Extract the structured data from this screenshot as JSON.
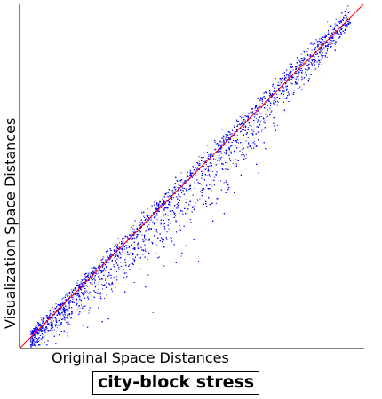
{
  "chart_data": {
    "type": "scatter",
    "title": "city-block stress",
    "xlabel": "Original Space Distances",
    "ylabel": "Visualization Space Distances",
    "xlim": [
      0,
      1
    ],
    "ylim": [
      0,
      1
    ],
    "grid": false,
    "legend": "none",
    "colors": {
      "points": "#0000ff",
      "reference_line": "#ff0000",
      "axes": "#000000"
    },
    "reference_line": {
      "label": "y = x",
      "x": [
        0,
        1
      ],
      "y": [
        0,
        1
      ]
    },
    "series": [
      {
        "points_description": "dense cloud around y=x, spreading below at mid range",
        "x": [
          0.04,
          0.05,
          0.06,
          0.07,
          0.08,
          0.09,
          0.1,
          0.11,
          0.12,
          0.13,
          0.14,
          0.15,
          0.16,
          0.17,
          0.18,
          0.19,
          0.2,
          0.21,
          0.22,
          0.23,
          0.24,
          0.25,
          0.26,
          0.27,
          0.28,
          0.29,
          0.3,
          0.31,
          0.32,
          0.33,
          0.34,
          0.35,
          0.36,
          0.37,
          0.38,
          0.39,
          0.4,
          0.41,
          0.42,
          0.43,
          0.44,
          0.45,
          0.46,
          0.47,
          0.48,
          0.49,
          0.5,
          0.51,
          0.52,
          0.53,
          0.54,
          0.55,
          0.56,
          0.57,
          0.58,
          0.59,
          0.6,
          0.61,
          0.62,
          0.63,
          0.64,
          0.65,
          0.66,
          0.67,
          0.68,
          0.69,
          0.7,
          0.71,
          0.72,
          0.73,
          0.74,
          0.75,
          0.76,
          0.77,
          0.78,
          0.79,
          0.8,
          0.81,
          0.82,
          0.83,
          0.84,
          0.85,
          0.86,
          0.87,
          0.88,
          0.89,
          0.9,
          0.91,
          0.92,
          0.93,
          0.94
        ],
        "y": [
          0.04,
          0.05,
          0.06,
          0.07,
          0.08,
          0.09,
          0.1,
          0.11,
          0.12,
          0.13,
          0.14,
          0.15,
          0.16,
          0.17,
          0.18,
          0.19,
          0.2,
          0.21,
          0.22,
          0.23,
          0.24,
          0.25,
          0.26,
          0.27,
          0.28,
          0.29,
          0.3,
          0.31,
          0.32,
          0.33,
          0.34,
          0.35,
          0.36,
          0.37,
          0.38,
          0.39,
          0.4,
          0.41,
          0.42,
          0.43,
          0.44,
          0.45,
          0.46,
          0.47,
          0.48,
          0.49,
          0.5,
          0.51,
          0.52,
          0.53,
          0.54,
          0.55,
          0.56,
          0.57,
          0.58,
          0.59,
          0.6,
          0.61,
          0.62,
          0.63,
          0.64,
          0.65,
          0.66,
          0.67,
          0.68,
          0.69,
          0.7,
          0.71,
          0.72,
          0.73,
          0.74,
          0.75,
          0.76,
          0.77,
          0.78,
          0.79,
          0.8,
          0.81,
          0.82,
          0.83,
          0.84,
          0.85,
          0.86,
          0.87,
          0.88,
          0.89,
          0.9,
          0.91,
          0.92,
          0.93,
          0.94
        ]
      }
    ]
  }
}
